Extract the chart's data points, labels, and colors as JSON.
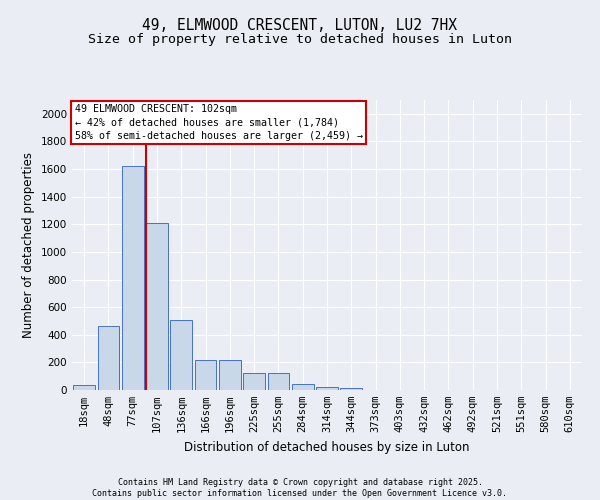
{
  "title1": "49, ELMWOOD CRESCENT, LUTON, LU2 7HX",
  "title2": "Size of property relative to detached houses in Luton",
  "xlabel": "Distribution of detached houses by size in Luton",
  "ylabel": "Number of detached properties",
  "bar_labels": [
    "18sqm",
    "48sqm",
    "77sqm",
    "107sqm",
    "136sqm",
    "166sqm",
    "196sqm",
    "225sqm",
    "255sqm",
    "284sqm",
    "314sqm",
    "344sqm",
    "373sqm",
    "403sqm",
    "432sqm",
    "462sqm",
    "492sqm",
    "521sqm",
    "551sqm",
    "580sqm",
    "610sqm"
  ],
  "bar_values": [
    35,
    465,
    1620,
    1210,
    510,
    215,
    215,
    125,
    125,
    40,
    25,
    15,
    0,
    0,
    0,
    0,
    0,
    0,
    0,
    0,
    0
  ],
  "bar_color_fill": "#c8d8e8",
  "bar_color_edge": "#4472c4",
  "vline_color": "#cc0000",
  "annotation_box_text": "49 ELMWOOD CRESCENT: 102sqm\n← 42% of detached houses are smaller (1,784)\n58% of semi-detached houses are larger (2,459) →",
  "annotation_box_color": "#cc0000",
  "annotation_box_bg": "#ffffff",
  "ylim": [
    0,
    2100
  ],
  "yticks": [
    0,
    200,
    400,
    600,
    800,
    1000,
    1200,
    1400,
    1600,
    1800,
    2000
  ],
  "bg_color": "#eaeef4",
  "footer_text": "Contains HM Land Registry data © Crown copyright and database right 2025.\nContains public sector information licensed under the Open Government Licence v3.0.",
  "title_fontsize": 10.5,
  "subtitle_fontsize": 9.5,
  "axis_fontsize": 8.5,
  "tick_fontsize": 7.5,
  "footer_fontsize": 6.0
}
